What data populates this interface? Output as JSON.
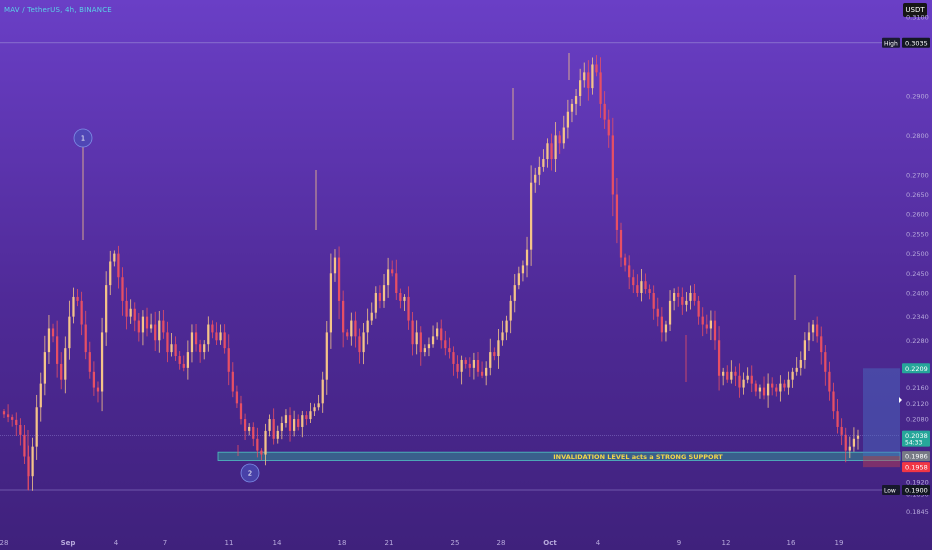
{
  "header": {
    "symbol_title": "MAV / TetherUS, 4h, BINANCE",
    "currency_button": "USDT"
  },
  "chart_data": {
    "type": "candlestick",
    "title": "MAV / TetherUS, 4h, BINANCE",
    "quote_currency": "USDT",
    "y_axis_ticks": [
      0.31,
      0.3035,
      0.29,
      0.28,
      0.27,
      0.265,
      0.26,
      0.255,
      0.25,
      0.245,
      0.24,
      0.234,
      0.228,
      0.2209,
      0.216,
      0.212,
      0.208,
      0.2038,
      0.1986,
      0.1958,
      0.192,
      0.19,
      0.189,
      0.1845
    ],
    "x_axis_ticks": [
      "28",
      "Sep",
      "4",
      "7",
      "11",
      "14",
      "18",
      "21",
      "25",
      "28",
      "Oct",
      "4",
      "9",
      "12",
      "16",
      "19"
    ],
    "price_labels": [
      {
        "label": "High",
        "value": "0.3035",
        "color": "#131722"
      },
      {
        "label": "",
        "value": "0.2209",
        "color": "#26a69a"
      },
      {
        "label": "",
        "value": "0.2038",
        "sub": "54:33",
        "color": "#26a69a"
      },
      {
        "label": "",
        "value": "0.1986",
        "color": "#787b86"
      },
      {
        "label": "",
        "value": "0.1958",
        "color": "#f23645"
      },
      {
        "label": "Low",
        "value": "0.1900",
        "color": "#131722"
      }
    ],
    "annotations": [
      {
        "text": "INVALIDATION LEVEL acts a STRONG SUPPORT",
        "type": "zone",
        "y_top": 0.1996,
        "y_bottom": 0.1975
      },
      {
        "text": "1",
        "type": "marker"
      },
      {
        "text": "2",
        "type": "marker"
      }
    ],
    "series_close": [
      0.2092,
      0.2085,
      0.2078,
      0.2065,
      0.204,
      0.1985,
      0.1935,
      0.201,
      0.211,
      0.217,
      0.225,
      0.231,
      0.229,
      0.222,
      0.218,
      0.226,
      0.234,
      0.239,
      0.238,
      0.232,
      0.225,
      0.22,
      0.216,
      0.215,
      0.23,
      0.242,
      0.248,
      0.25,
      0.244,
      0.238,
      0.234,
      0.236,
      0.233,
      0.23,
      0.234,
      0.231,
      0.232,
      0.228,
      0.233,
      0.23,
      0.225,
      0.227,
      0.224,
      0.222,
      0.221,
      0.225,
      0.23,
      0.227,
      0.225,
      0.227,
      0.232,
      0.23,
      0.228,
      0.23,
      0.226,
      0.22,
      0.215,
      0.212,
      0.208,
      0.205,
      0.206,
      0.203,
      0.2,
      0.199,
      0.205,
      0.208,
      0.203,
      0.205,
      0.207,
      0.209,
      0.205,
      0.208,
      0.206,
      0.209,
      0.208,
      0.21,
      0.211,
      0.212,
      0.218,
      0.23,
      0.245,
      0.249,
      0.238,
      0.23,
      0.229,
      0.233,
      0.229,
      0.225,
      0.23,
      0.233,
      0.235,
      0.24,
      0.238,
      0.242,
      0.246,
      0.245,
      0.24,
      0.238,
      0.239,
      0.233,
      0.227,
      0.23,
      0.225,
      0.226,
      0.227,
      0.229,
      0.231,
      0.228,
      0.226,
      0.225,
      0.222,
      0.22,
      0.223,
      0.222,
      0.221,
      0.223,
      0.22,
      0.219,
      0.221,
      0.225,
      0.224,
      0.228,
      0.23,
      0.233,
      0.238,
      0.242,
      0.245,
      0.247,
      0.251,
      0.268,
      0.27,
      0.272,
      0.274,
      0.278,
      0.274,
      0.28,
      0.278,
      0.282,
      0.286,
      0.288,
      0.29,
      0.294,
      0.296,
      0.292,
      0.298,
      0.296,
      0.288,
      0.284,
      0.28,
      0.265,
      0.256,
      0.249,
      0.247,
      0.244,
      0.242,
      0.24,
      0.243,
      0.241,
      0.24,
      0.236,
      0.234,
      0.23,
      0.232,
      0.238,
      0.24,
      0.239,
      0.237,
      0.238,
      0.24,
      0.238,
      0.234,
      0.232,
      0.231,
      0.233,
      0.228,
      0.219,
      0.22,
      0.218,
      0.22,
      0.219,
      0.216,
      0.218,
      0.219,
      0.217,
      0.215,
      0.216,
      0.214,
      0.217,
      0.216,
      0.215,
      0.217,
      0.216,
      0.218,
      0.22,
      0.221,
      0.223,
      0.228,
      0.23,
      0.232,
      0.229,
      0.225,
      0.22,
      0.215,
      0.21,
      0.206,
      0.204,
      0.2,
      0.201,
      0.203,
      0.2038
    ]
  }
}
